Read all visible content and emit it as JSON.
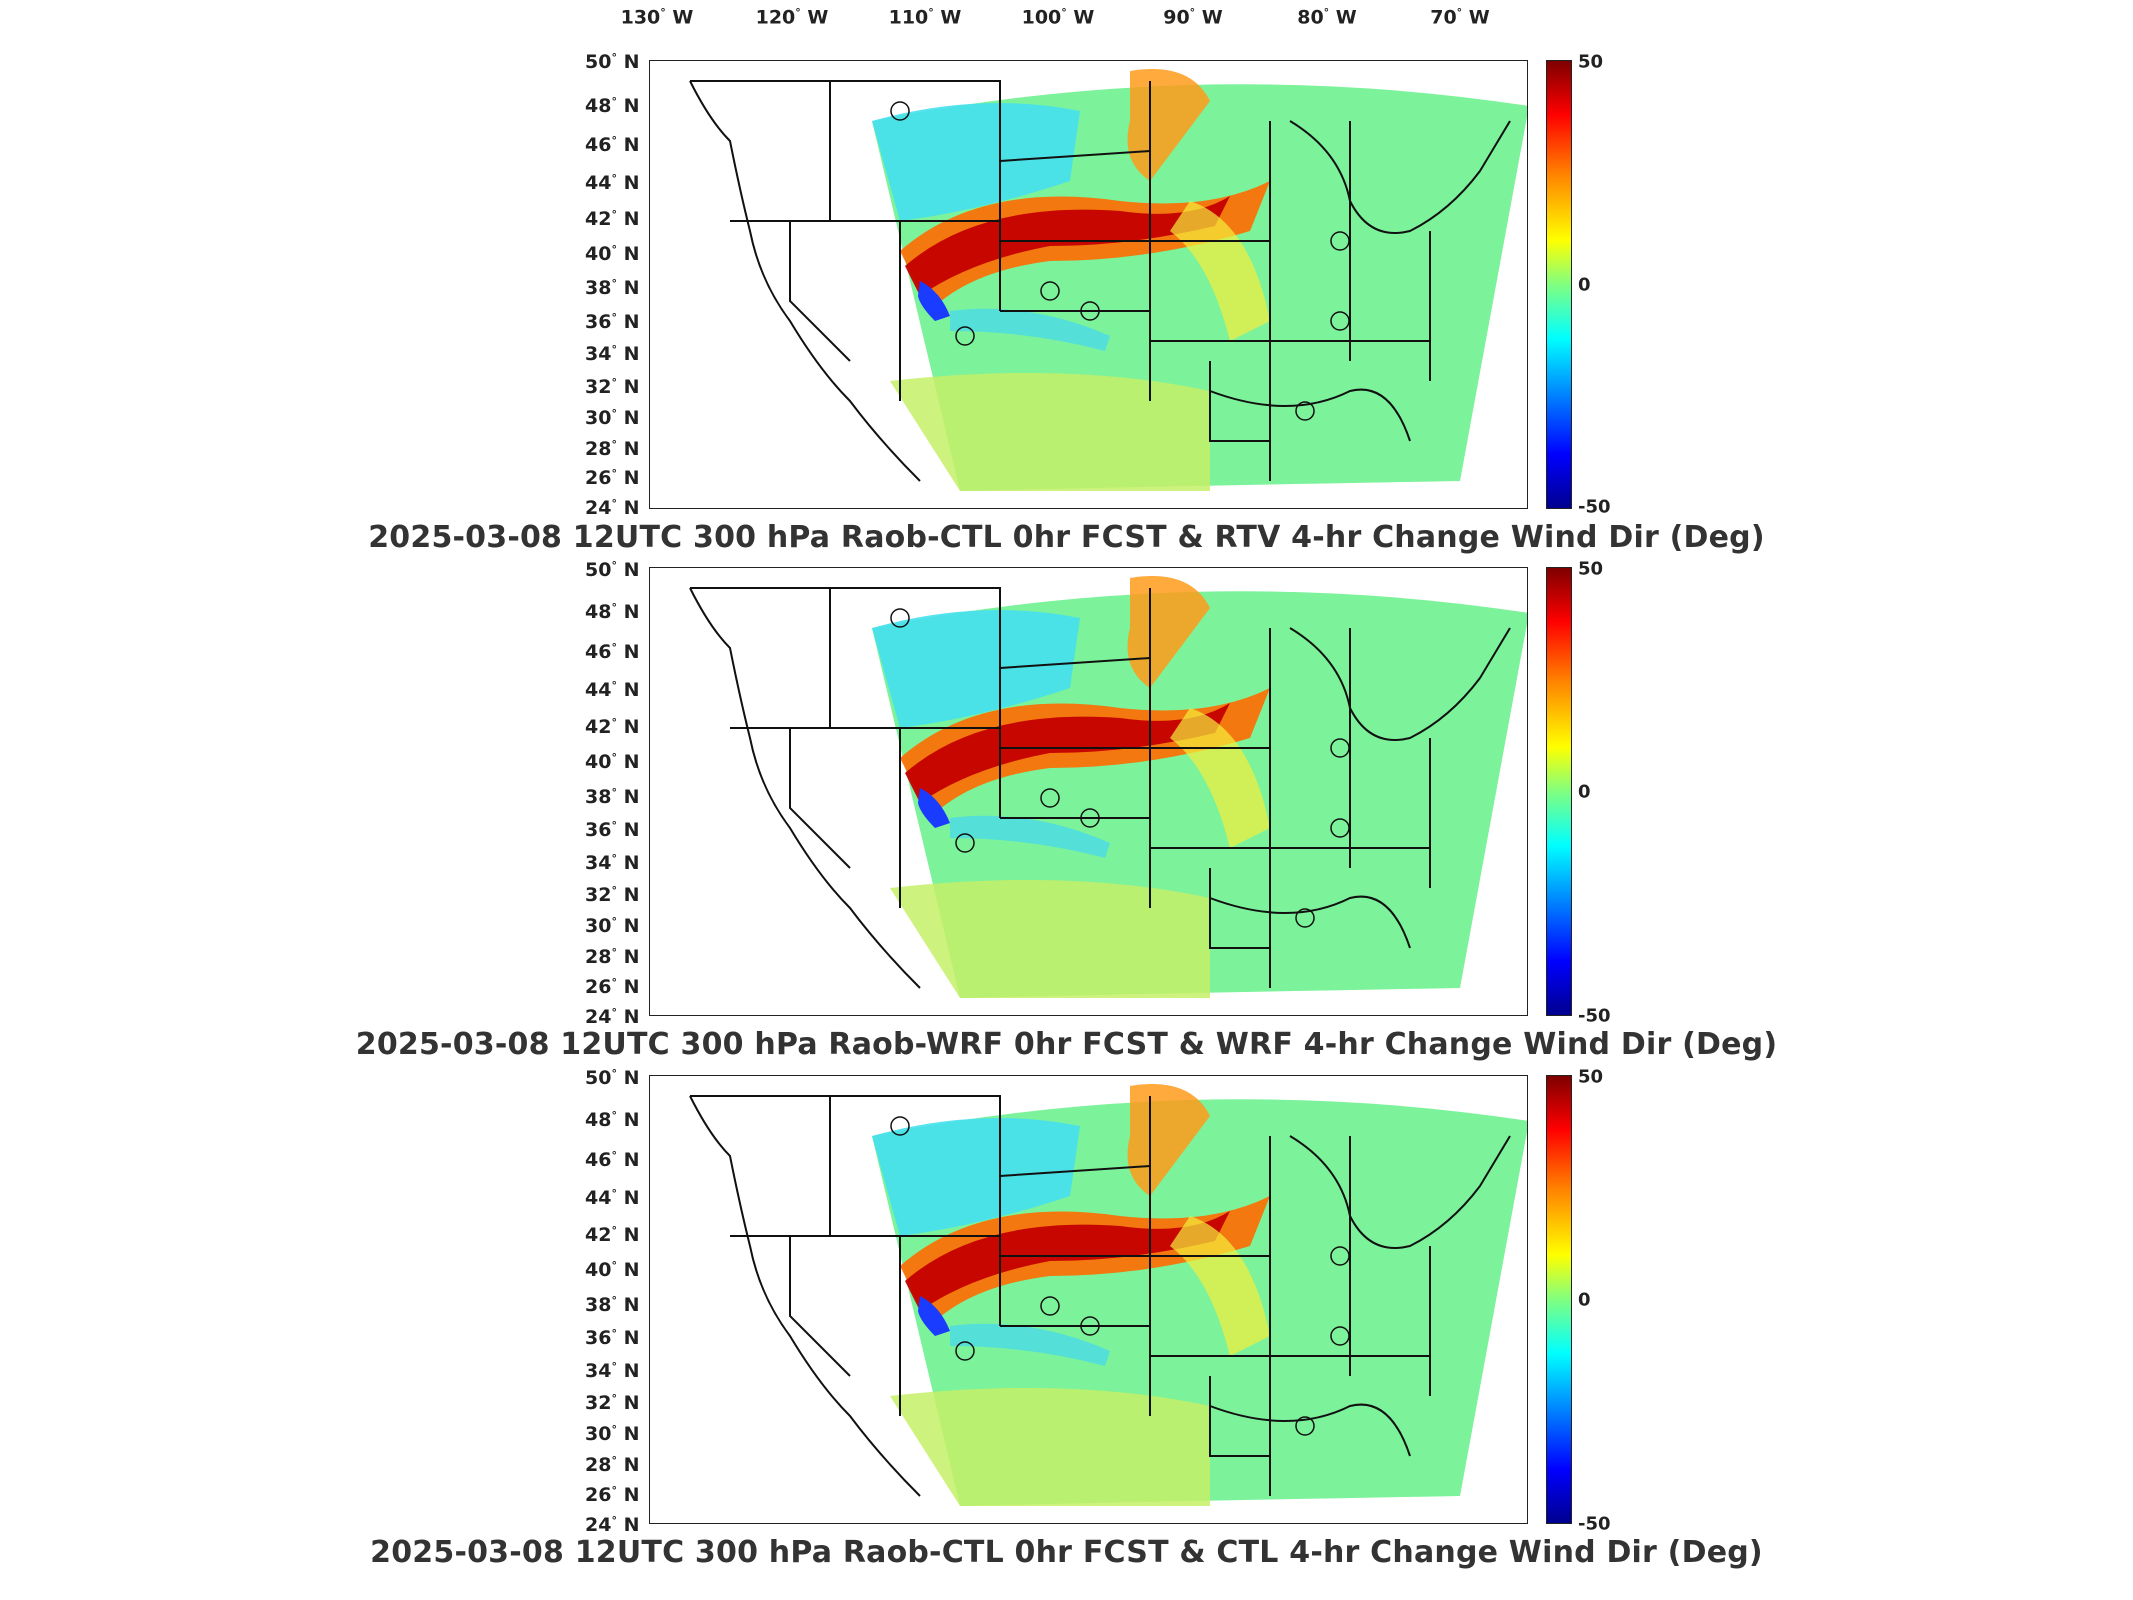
{
  "lon_axis": [
    "130",
    "120",
    "110",
    "100",
    "90",
    "80",
    "70"
  ],
  "lon_suffix": "W",
  "lat_suffix": "N",
  "lat_axis": [
    "50",
    "48",
    "46",
    "44",
    "42",
    "40",
    "38",
    "36",
    "34",
    "32",
    "30",
    "28",
    "26",
    "24"
  ],
  "colorbar": {
    "max": "50",
    "mid": "0",
    "min": "-50",
    "colors": [
      "#7f0000",
      "#ff0000",
      "#ff8000",
      "#ffff00",
      "#80ff80",
      "#00ffff",
      "#0080ff",
      "#0000ff",
      "#00008f"
    ]
  },
  "panels": [
    {
      "title": "2025-03-08 12UTC 300 hPa Raob-CTL 0hr FCST & RTV 4-hr Change Wind Dir (Deg)"
    },
    {
      "title": "2025-03-08 12UTC 300 hPa Raob-WRF 0hr FCST & WRF 4-hr Change Wind Dir (Deg)"
    },
    {
      "title": "2025-03-08 12UTC 300 hPa Raob-CTL 0hr FCST & CTL 4-hr Change Wind Dir (Deg)"
    }
  ]
}
